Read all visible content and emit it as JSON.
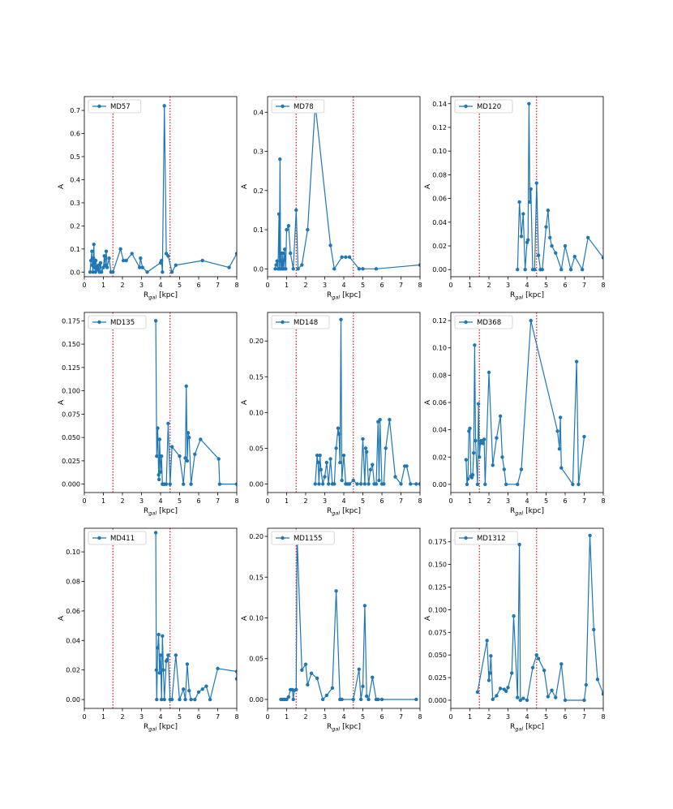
{
  "figure": {
    "xlabel_main": "R",
    "xlabel_sub": "gal",
    "xlabel_unit": " [kpc]",
    "ylabel": "A",
    "series_color": "#1f77b4",
    "marker_line_color": "#d62728",
    "markers": [
      1.5,
      4.5
    ]
  },
  "chart_data": [
    {
      "type": "line",
      "name": "MD57",
      "legend": "MD57",
      "xlim": [
        0,
        8
      ],
      "ylim": [
        -0.02,
        0.76
      ],
      "xticks": [
        "0",
        "1",
        "2",
        "3",
        "4",
        "5",
        "6",
        "7",
        "8"
      ],
      "yticks": [
        "0.0",
        "0.1",
        "0.2",
        "0.3",
        "0.4",
        "0.5",
        "0.6",
        "0.7"
      ],
      "ytick_values": [
        0,
        0.1,
        0.2,
        0.3,
        0.4,
        0.5,
        0.6,
        0.7
      ],
      "x": [
        0.3,
        0.35,
        0.4,
        0.42,
        0.45,
        0.48,
        0.5,
        0.52,
        0.55,
        0.58,
        0.6,
        0.65,
        0.7,
        0.75,
        0.8,
        0.85,
        0.9,
        1.0,
        1.05,
        1.1,
        1.15,
        1.2,
        1.3,
        1.4,
        1.5,
        1.9,
        2.05,
        2.2,
        2.5,
        2.9,
        2.95,
        3.05,
        3.3,
        4.0,
        4.05,
        4.1,
        4.2,
        4.3,
        4.4,
        4.6,
        4.8,
        6.2,
        7.6,
        8.0
      ],
      "y": [
        0.0,
        0.05,
        0.09,
        0.03,
        0.0,
        0.06,
        0.12,
        0.04,
        0.02,
        0.0,
        0.05,
        0.02,
        0.01,
        0.03,
        0.0,
        0.04,
        0.0,
        0.02,
        0.07,
        0.03,
        0.09,
        0.02,
        0.06,
        0.0,
        0.0,
        0.1,
        0.05,
        0.05,
        0.08,
        0.02,
        0.06,
        0.02,
        0.0,
        0.04,
        0.05,
        0.0,
        0.72,
        0.08,
        0.07,
        0.0,
        0.03,
        0.05,
        0.02,
        0.08
      ]
    },
    {
      "type": "line",
      "name": "MD78",
      "legend": "MD78",
      "xlim": [
        0,
        8
      ],
      "ylim": [
        -0.02,
        0.44
      ],
      "xticks": [
        "0",
        "1",
        "2",
        "3",
        "4",
        "5",
        "6",
        "7",
        "8"
      ],
      "yticks": [
        "0.0",
        "0.1",
        "0.2",
        "0.3",
        "0.4"
      ],
      "ytick_values": [
        0,
        0.1,
        0.2,
        0.3,
        0.4
      ],
      "x": [
        0.4,
        0.45,
        0.5,
        0.55,
        0.6,
        0.62,
        0.65,
        0.68,
        0.7,
        0.72,
        0.75,
        0.78,
        0.8,
        0.82,
        0.85,
        0.9,
        0.95,
        1.0,
        1.1,
        1.2,
        1.35,
        1.5,
        1.6,
        1.8,
        2.1,
        2.5,
        3.3,
        3.5,
        3.9,
        4.1,
        4.3,
        4.8,
        5.0,
        5.7,
        8.0
      ],
      "y": [
        0.0,
        0.01,
        0.02,
        0.0,
        0.14,
        0.0,
        0.28,
        0.02,
        0.0,
        0.04,
        0.01,
        0.0,
        0.04,
        0.02,
        0.0,
        0.05,
        0.0,
        0.1,
        0.11,
        0.04,
        0.0,
        0.15,
        0.0,
        0.01,
        0.1,
        0.42,
        0.06,
        0.0,
        0.03,
        0.03,
        0.03,
        0.0,
        0.0,
        0.0,
        0.01
      ]
    },
    {
      "type": "line",
      "name": "MD120",
      "legend": "MD120",
      "xlim": [
        0,
        8
      ],
      "ylim": [
        -0.006,
        0.146
      ],
      "xticks": [
        "0",
        "1",
        "2",
        "3",
        "4",
        "5",
        "6",
        "7",
        "8"
      ],
      "yticks": [
        "0.00",
        "0.02",
        "0.04",
        "0.06",
        "0.08",
        "0.10",
        "0.12",
        "0.14"
      ],
      "ytick_values": [
        0,
        0.02,
        0.04,
        0.06,
        0.08,
        0.1,
        0.12,
        0.14
      ],
      "x": [
        3.5,
        3.6,
        3.7,
        3.8,
        3.9,
        4.0,
        4.05,
        4.1,
        4.15,
        4.2,
        4.3,
        4.4,
        4.5,
        4.6,
        4.7,
        4.8,
        5.0,
        5.1,
        5.2,
        5.3,
        5.5,
        5.8,
        6.0,
        6.3,
        6.5,
        6.9,
        7.2,
        8.0
      ],
      "y": [
        0.0,
        0.057,
        0.028,
        0.047,
        0.0,
        0.023,
        0.025,
        0.14,
        0.057,
        0.068,
        0.0,
        0.0,
        0.073,
        0.012,
        0.0,
        0.0,
        0.036,
        0.05,
        0.027,
        0.02,
        0.014,
        0.0,
        0.02,
        0.0,
        0.011,
        0.0,
        0.027,
        0.01
      ]
    },
    {
      "type": "line",
      "name": "MD135",
      "legend": "MD135",
      "xlim": [
        0,
        8
      ],
      "ylim": [
        -0.009,
        0.184
      ],
      "xticks": [
        "0",
        "1",
        "2",
        "3",
        "4",
        "5",
        "6",
        "7",
        "8"
      ],
      "yticks": [
        "0.000",
        "0.025",
        "0.050",
        "0.075",
        "0.100",
        "0.125",
        "0.150",
        "0.175"
      ],
      "ytick_values": [
        0,
        0.025,
        0.05,
        0.075,
        0.1,
        0.125,
        0.15,
        0.175
      ],
      "x": [
        3.75,
        3.8,
        3.85,
        3.9,
        3.92,
        3.95,
        4.0,
        4.05,
        4.1,
        4.15,
        4.2,
        4.3,
        4.4,
        4.5,
        4.6,
        5.0,
        5.2,
        5.3,
        5.35,
        5.4,
        5.45,
        5.5,
        5.6,
        5.8,
        6.1,
        7.05,
        7.1,
        8.0
      ],
      "y": [
        0.175,
        0.03,
        0.06,
        0.01,
        0.005,
        0.048,
        0.013,
        0.03,
        0.0,
        0.0,
        0.0,
        0.0,
        0.065,
        0.0,
        0.04,
        0.03,
        0.0,
        0.028,
        0.105,
        0.025,
        0.055,
        0.05,
        0.0,
        0.032,
        0.048,
        0.027,
        0.0,
        0.0
      ]
    },
    {
      "type": "line",
      "name": "MD148",
      "legend": "MD148",
      "xlim": [
        0,
        8
      ],
      "ylim": [
        -0.012,
        0.24
      ],
      "xticks": [
        "0",
        "1",
        "2",
        "3",
        "4",
        "5",
        "6",
        "7",
        "8"
      ],
      "yticks": [
        "0.00",
        "0.05",
        "0.10",
        "0.15",
        "0.20"
      ],
      "ytick_values": [
        0,
        0.05,
        0.1,
        0.15,
        0.2
      ],
      "x": [
        2.5,
        2.6,
        2.65,
        2.7,
        2.75,
        2.8,
        2.9,
        3.0,
        3.1,
        3.2,
        3.3,
        3.4,
        3.5,
        3.6,
        3.7,
        3.75,
        3.8,
        3.85,
        3.9,
        4.0,
        4.1,
        4.2,
        4.3,
        4.5,
        4.7,
        4.9,
        5.0,
        5.1,
        5.15,
        5.2,
        5.3,
        5.4,
        5.5,
        5.6,
        5.7,
        5.8,
        5.85,
        5.9,
        6.0,
        6.1,
        6.2,
        6.4,
        6.7,
        7.0,
        7.2,
        7.3,
        7.5,
        7.8,
        8.0
      ],
      "y": [
        0.0,
        0.04,
        0.03,
        0.0,
        0.04,
        0.02,
        0.0,
        0.01,
        0.03,
        0.0,
        0.035,
        0.0,
        0.0,
        0.05,
        0.078,
        0.07,
        0.03,
        0.23,
        0.005,
        0.04,
        0.0,
        0.0,
        0.0,
        0.005,
        0.0,
        0.0,
        0.063,
        0.0,
        0.05,
        0.045,
        0.0,
        0.02,
        0.027,
        0.0,
        0.0,
        0.087,
        0.005,
        0.09,
        0.0,
        0.0,
        0.05,
        0.09,
        0.01,
        0.0,
        0.025,
        0.025,
        0.0,
        0.0,
        0.0
      ]
    },
    {
      "type": "line",
      "name": "MD368",
      "legend": "MD368",
      "xlim": [
        0,
        8
      ],
      "ylim": [
        -0.006,
        0.126
      ],
      "xticks": [
        "0",
        "1",
        "2",
        "3",
        "4",
        "5",
        "6",
        "7",
        "8"
      ],
      "yticks": [
        "0.00",
        "0.02",
        "0.04",
        "0.06",
        "0.08",
        "0.10",
        "0.12"
      ],
      "ytick_values": [
        0,
        0.02,
        0.04,
        0.06,
        0.08,
        0.1,
        0.12
      ],
      "x": [
        0.8,
        0.85,
        0.9,
        0.95,
        1.0,
        1.05,
        1.1,
        1.15,
        1.2,
        1.25,
        1.3,
        1.4,
        1.45,
        1.5,
        1.55,
        1.6,
        1.7,
        1.75,
        1.8,
        2.0,
        2.2,
        2.4,
        2.6,
        2.7,
        2.8,
        2.9,
        3.5,
        3.7,
        4.2,
        5.6,
        5.7,
        5.75,
        5.8,
        6.4,
        6.6,
        6.7,
        7.0
      ],
      "y": [
        0.018,
        0.0,
        0.004,
        0.039,
        0.041,
        0.006,
        0.005,
        0.007,
        0.023,
        0.102,
        0.032,
        0.0,
        0.059,
        0.02,
        0.03,
        0.032,
        0.03,
        0.033,
        0.0,
        0.082,
        0.014,
        0.034,
        0.05,
        0.02,
        0.011,
        0.0,
        0.0,
        0.011,
        0.12,
        0.039,
        0.026,
        0.049,
        0.012,
        0.0,
        0.09,
        0.0,
        0.035
      ]
    },
    {
      "type": "line",
      "name": "MD411",
      "legend": "MD411",
      "xlim": [
        0,
        8
      ],
      "ylim": [
        -0.006,
        0.116
      ],
      "xticks": [
        "0",
        "1",
        "2",
        "3",
        "4",
        "5",
        "6",
        "7",
        "8"
      ],
      "yticks": [
        "0.00",
        "0.02",
        "0.04",
        "0.06",
        "0.08",
        "0.10"
      ],
      "ytick_values": [
        0,
        0.02,
        0.04,
        0.06,
        0.08,
        0.1
      ],
      "x": [
        3.75,
        3.78,
        3.8,
        3.85,
        3.9,
        3.95,
        4.0,
        4.05,
        4.1,
        4.15,
        4.2,
        4.3,
        4.35,
        4.4,
        4.5,
        4.6,
        4.8,
        5.0,
        5.2,
        5.3,
        5.4,
        5.5,
        5.6,
        5.8,
        6.0,
        6.2,
        6.4,
        6.6,
        7.0,
        8.0,
        8.0
      ],
      "y": [
        0.113,
        0.02,
        0.0,
        0.035,
        0.044,
        0.018,
        0.03,
        0.0,
        0.043,
        0.02,
        0.0,
        0.026,
        0.027,
        0.03,
        0.0,
        0.0,
        0.03,
        0.0,
        0.007,
        0.0,
        0.024,
        0.006,
        0.0,
        0.0,
        0.005,
        0.007,
        0.009,
        0.0,
        0.021,
        0.019,
        0.014
      ]
    },
    {
      "type": "line",
      "name": "MD1155",
      "legend": "MD1155",
      "xlim": [
        0,
        8
      ],
      "ylim": [
        -0.011,
        0.21
      ],
      "xticks": [
        "0",
        "1",
        "2",
        "3",
        "4",
        "5",
        "6",
        "7",
        "8"
      ],
      "yticks": [
        "0.00",
        "0.05",
        "0.10",
        "0.15",
        "0.20"
      ],
      "ytick_values": [
        0,
        0.05,
        0.1,
        0.15,
        0.2
      ],
      "x": [
        0.7,
        0.8,
        0.9,
        1.0,
        1.1,
        1.2,
        1.3,
        1.35,
        1.4,
        1.5,
        1.55,
        1.8,
        2.0,
        2.1,
        2.3,
        2.6,
        2.9,
        3.1,
        3.4,
        3.6,
        3.8,
        3.9,
        4.5,
        4.8,
        4.9,
        5.0,
        5.1,
        5.2,
        5.3,
        5.5,
        5.7,
        5.8,
        6.0,
        7.8
      ],
      "y": [
        0.0,
        0.0,
        0.0,
        0.0,
        0.003,
        0.012,
        0.012,
        0.0,
        0.011,
        0.012,
        0.2,
        0.036,
        0.043,
        0.018,
        0.032,
        0.026,
        0.0,
        0.005,
        0.014,
        0.133,
        0.0,
        0.0,
        0.0,
        0.037,
        0.0,
        0.016,
        0.115,
        0.004,
        0.0,
        0.027,
        0.0,
        0.0,
        0.0,
        0.0
      ]
    },
    {
      "type": "line",
      "name": "MD1312",
      "legend": "MD1312",
      "xlim": [
        0,
        8
      ],
      "ylim": [
        -0.009,
        0.19
      ],
      "xticks": [
        "0",
        "1",
        "2",
        "3",
        "4",
        "5",
        "6",
        "7",
        "8"
      ],
      "yticks": [
        "0.000",
        "0.025",
        "0.050",
        "0.075",
        "0.100",
        "0.125",
        "0.150",
        "0.175"
      ],
      "ytick_values": [
        0,
        0.025,
        0.05,
        0.075,
        0.1,
        0.125,
        0.15,
        0.175
      ],
      "x": [
        1.4,
        1.9,
        2.0,
        2.05,
        2.1,
        2.2,
        2.4,
        2.6,
        2.8,
        2.9,
        3.0,
        3.2,
        3.3,
        3.5,
        3.6,
        3.65,
        3.8,
        4.0,
        4.3,
        4.5,
        4.6,
        4.9,
        5.1,
        5.3,
        5.5,
        5.8,
        6.0,
        7.0,
        7.1,
        7.3,
        7.5,
        7.7,
        8.0
      ],
      "y": [
        0.009,
        0.066,
        0.022,
        0.03,
        0.049,
        0.001,
        0.005,
        0.013,
        0.012,
        0.01,
        0.014,
        0.03,
        0.093,
        0.003,
        0.172,
        0.0,
        0.002,
        0.0,
        0.036,
        0.05,
        0.046,
        0.033,
        0.004,
        0.011,
        0.003,
        0.04,
        0.0,
        0.0,
        0.017,
        0.182,
        0.078,
        0.023,
        0.007
      ]
    }
  ]
}
